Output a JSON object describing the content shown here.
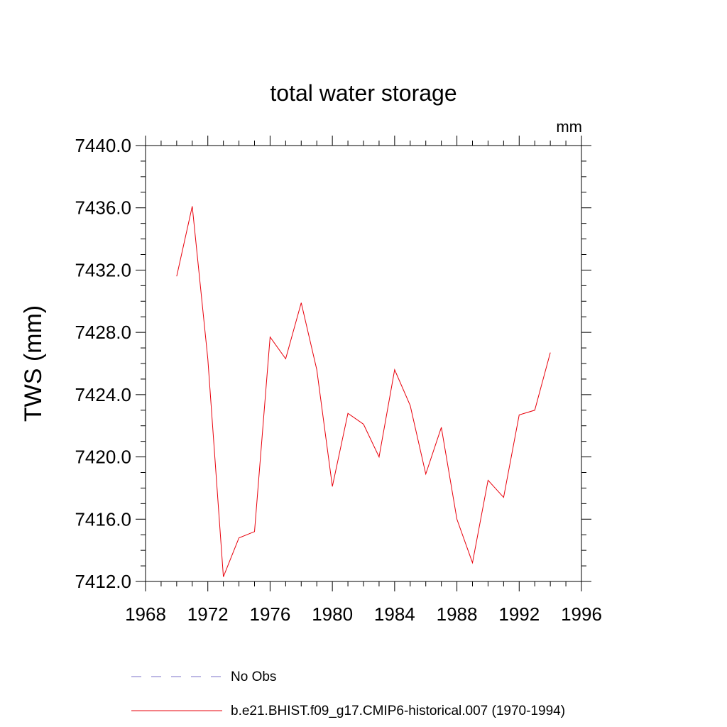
{
  "chart_data": {
    "type": "line",
    "title": "total water storage",
    "units_label": "mm",
    "ylabel": "TWS  (mm)",
    "xlabel": "",
    "xlim": [
      1968,
      1996
    ],
    "ylim": [
      7412.0,
      7440.0
    ],
    "x_ticks": [
      "1968",
      "1972",
      "1976",
      "1980",
      "1984",
      "1988",
      "1992",
      "1996"
    ],
    "y_ticks": [
      "7412.0",
      "7416.0",
      "7420.0",
      "7424.0",
      "7428.0",
      "7432.0",
      "7436.0",
      "7440.0"
    ],
    "series": [
      {
        "name": "b.e21.BHIST.f09_g17.CMIP6-historical.007 (1970-1994)",
        "color": "#e8000b",
        "style": "solid",
        "x": [
          1970,
          1971,
          1972,
          1973,
          1974,
          1975,
          1976,
          1977,
          1978,
          1979,
          1980,
          1981,
          1982,
          1983,
          1984,
          1985,
          1986,
          1987,
          1988,
          1989,
          1990,
          1991,
          1992,
          1993,
          1994
        ],
        "y": [
          7431.6,
          7436.1,
          7426.3,
          7412.3,
          7414.8,
          7415.2,
          7427.7,
          7426.3,
          7429.9,
          7425.6,
          7418.1,
          7422.8,
          7422.1,
          7420.0,
          7425.6,
          7423.3,
          7418.9,
          7421.9,
          7416.0,
          7413.2,
          7418.5,
          7417.4,
          7422.7,
          7423.0,
          7426.7
        ]
      }
    ],
    "legend": [
      {
        "label": "No Obs",
        "color": "#7b70c8",
        "style": "dashed"
      },
      {
        "label": "b.e21.BHIST.f09_g17.CMIP6-historical.007 (1970-1994)",
        "color": "#e8000b",
        "style": "solid"
      }
    ],
    "legend_position": "bottom"
  }
}
